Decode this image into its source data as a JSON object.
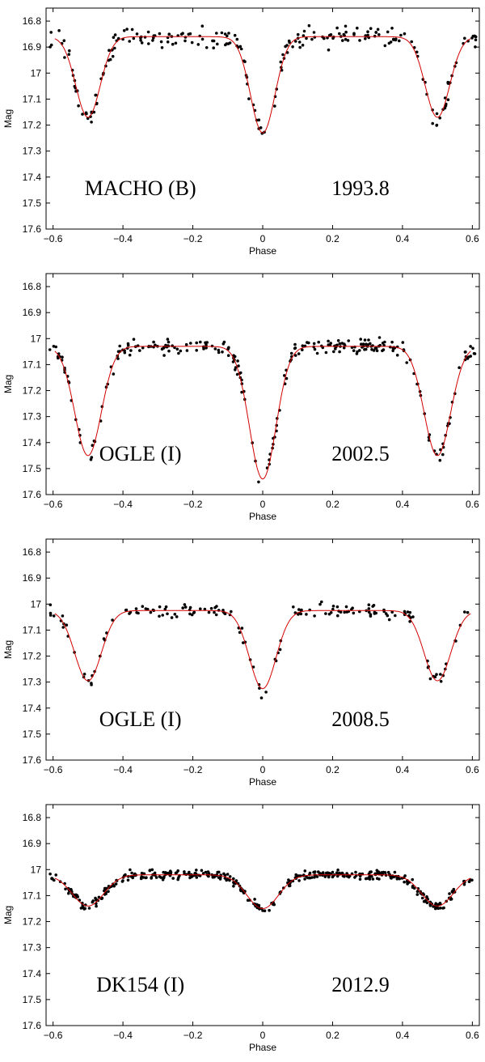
{
  "chart_data": [
    {
      "type": "scatter",
      "ylim": [
        17.6,
        16.75
      ],
      "xlim": [
        -0.62,
        0.62
      ],
      "xlabel": "Phase",
      "ylabel": "Mag",
      "xticks": [
        "−0.6",
        "−0.4",
        "−0.2",
        "0",
        "0.2",
        "0.4",
        "0.6"
      ],
      "yticks": [
        "16.8",
        "16.9",
        "17",
        "17.1",
        "17.2",
        "17.3",
        "17.4",
        "17.5",
        "17.6"
      ],
      "annotation_left": "MACHO (B)",
      "annotation_right": "1993.8",
      "model": {
        "base": 16.86,
        "slope": 0.08,
        "depth_primary": 0.37,
        "depth_secondary": 0.31,
        "width": 0.035,
        "edge_phase": 0.44
      },
      "series": [
        {
          "name": "observations",
          "scatter": 0.03,
          "count": 230
        }
      ]
    },
    {
      "type": "scatter",
      "ylim": [
        17.6,
        16.75
      ],
      "xlim": [
        -0.62,
        0.62
      ],
      "xlabel": "Phase",
      "ylabel": "Mag",
      "xticks": [
        "−0.6",
        "−0.4",
        "−0.2",
        "0",
        "0.2",
        "0.4",
        "0.6"
      ],
      "yticks": [
        "16.8",
        "16.9",
        "17",
        "17.1",
        "17.2",
        "17.3",
        "17.4",
        "17.5",
        "17.6"
      ],
      "annotation_left": "OGLE (I)",
      "annotation_right": "2002.5",
      "model": {
        "base": 17.03,
        "slope": 0.04,
        "depth_primary": 0.51,
        "depth_secondary": 0.42,
        "width": 0.038,
        "edge_phase": 0.44
      },
      "series": [
        {
          "name": "observations",
          "scatter": 0.02,
          "count": 260
        }
      ]
    },
    {
      "type": "scatter",
      "ylim": [
        17.6,
        16.75
      ],
      "xlim": [
        -0.62,
        0.62
      ],
      "xlabel": "Phase",
      "ylabel": "Mag",
      "xticks": [
        "−0.6",
        "−0.4",
        "−0.2",
        "0",
        "0.2",
        "0.4",
        "0.6"
      ],
      "yticks": [
        "16.8",
        "16.9",
        "17",
        "17.1",
        "17.2",
        "17.3",
        "17.4",
        "17.5",
        "17.6"
      ],
      "annotation_left": "OGLE (I)",
      "annotation_right": "2008.5",
      "model": {
        "base": 17.025,
        "slope": 0.04,
        "depth_primary": 0.3,
        "depth_secondary": 0.27,
        "width": 0.038,
        "edge_phase": 0.44
      },
      "series": [
        {
          "name": "observations",
          "scatter": 0.02,
          "count": 160
        }
      ]
    },
    {
      "type": "scatter",
      "ylim": [
        17.6,
        16.75
      ],
      "xlim": [
        -0.62,
        0.62
      ],
      "xlabel": "Phase",
      "ylabel": "Mag",
      "xticks": [
        "−0.6",
        "−0.4",
        "−0.2",
        "0",
        "0.2",
        "0.4",
        "0.6"
      ],
      "yticks": [
        "16.8",
        "16.9",
        "17",
        "17.1",
        "17.2",
        "17.3",
        "17.4",
        "17.5",
        "17.6"
      ],
      "annotation_left": "DK154 (I)",
      "annotation_right": "2012.9",
      "model": {
        "base": 17.02,
        "slope": 0.05,
        "depth_primary": 0.13,
        "depth_secondary": 0.12,
        "width": 0.045,
        "edge_phase": 0.43
      },
      "series": [
        {
          "name": "observations",
          "scatter": 0.012,
          "count": 420
        }
      ]
    }
  ],
  "colors": {
    "model_line": "#d40000",
    "points": "#000000",
    "axis": "#000000"
  }
}
